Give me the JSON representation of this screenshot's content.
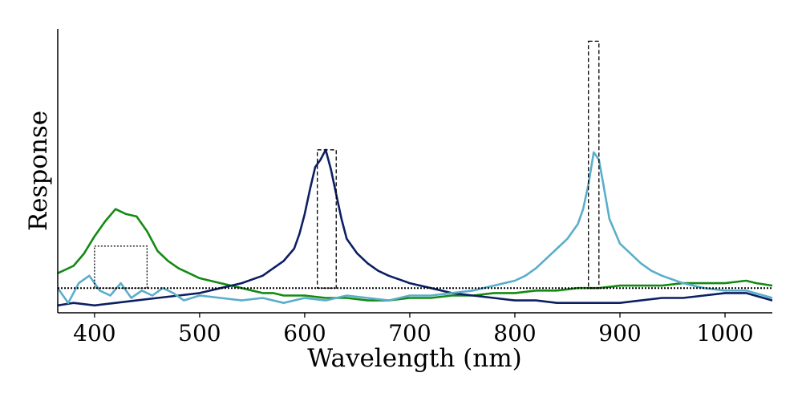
{
  "chart_data": {
    "type": "line",
    "title": "",
    "xlabel": "Wavelength (nm)",
    "ylabel": "Response",
    "xlim": [
      365,
      1045
    ],
    "ylim": [
      -0.1,
      1.05
    ],
    "xticks": [
      400,
      500,
      600,
      700,
      800,
      900,
      1000
    ],
    "xtick_labels": [
      "400",
      "500",
      "600",
      "700",
      "800",
      "900",
      "1000"
    ],
    "grid": false,
    "legend": "none",
    "colors": {
      "green": "#138a13",
      "navy": "#0c1f63",
      "lightblue": "#5aaecb",
      "box": "#000000"
    },
    "series": [
      {
        "name": "green",
        "color": "#138a13",
        "x": [
          365,
          380,
          390,
          400,
          410,
          420,
          425,
          430,
          440,
          450,
          460,
          470,
          480,
          490,
          500,
          510,
          520,
          530,
          540,
          550,
          560,
          570,
          580,
          600,
          620,
          640,
          660,
          680,
          700,
          720,
          740,
          760,
          780,
          800,
          820,
          840,
          860,
          880,
          900,
          920,
          940,
          960,
          980,
          1000,
          1020,
          1030,
          1045
        ],
        "y": [
          0.06,
          0.09,
          0.14,
          0.21,
          0.27,
          0.32,
          0.31,
          0.3,
          0.29,
          0.23,
          0.15,
          0.11,
          0.08,
          0.06,
          0.04,
          0.03,
          0.02,
          0.01,
          0.0,
          -0.01,
          -0.02,
          -0.02,
          -0.03,
          -0.03,
          -0.04,
          -0.04,
          -0.05,
          -0.05,
          -0.04,
          -0.04,
          -0.03,
          -0.03,
          -0.02,
          -0.02,
          -0.01,
          -0.01,
          0.0,
          0.0,
          0.01,
          0.01,
          0.01,
          0.02,
          0.02,
          0.02,
          0.03,
          0.02,
          0.01
        ]
      },
      {
        "name": "navy",
        "color": "#0c1f63",
        "x": [
          365,
          380,
          400,
          420,
          440,
          460,
          480,
          500,
          520,
          540,
          560,
          570,
          580,
          590,
          595,
          600,
          605,
          610,
          615,
          620,
          625,
          630,
          635,
          640,
          650,
          660,
          670,
          680,
          700,
          720,
          740,
          760,
          780,
          800,
          820,
          840,
          860,
          880,
          900,
          920,
          940,
          960,
          980,
          1000,
          1020,
          1045
        ],
        "y": [
          -0.07,
          -0.06,
          -0.07,
          -0.06,
          -0.05,
          -0.04,
          -0.03,
          -0.02,
          0.0,
          0.02,
          0.05,
          0.08,
          0.11,
          0.16,
          0.22,
          0.3,
          0.4,
          0.49,
          0.52,
          0.56,
          0.48,
          0.38,
          0.28,
          0.2,
          0.14,
          0.1,
          0.07,
          0.05,
          0.02,
          0.0,
          -0.02,
          -0.03,
          -0.04,
          -0.05,
          -0.05,
          -0.06,
          -0.06,
          -0.06,
          -0.06,
          -0.05,
          -0.04,
          -0.04,
          -0.03,
          -0.02,
          -0.02,
          -0.05
        ]
      },
      {
        "name": "light blue",
        "color": "#5aaecb",
        "x": [
          365,
          375,
          385,
          395,
          405,
          415,
          425,
          435,
          445,
          455,
          465,
          475,
          485,
          500,
          520,
          540,
          560,
          580,
          600,
          620,
          640,
          660,
          680,
          700,
          720,
          740,
          760,
          780,
          800,
          810,
          820,
          830,
          840,
          850,
          860,
          865,
          870,
          875,
          880,
          885,
          890,
          900,
          910,
          920,
          930,
          940,
          960,
          980,
          1000,
          1020,
          1045
        ],
        "y": [
          0.0,
          -0.06,
          0.02,
          0.05,
          -0.01,
          -0.03,
          0.02,
          -0.04,
          -0.01,
          -0.03,
          0.0,
          -0.02,
          -0.05,
          -0.03,
          -0.04,
          -0.05,
          -0.04,
          -0.06,
          -0.04,
          -0.05,
          -0.03,
          -0.04,
          -0.05,
          -0.03,
          -0.03,
          -0.02,
          -0.01,
          0.01,
          0.03,
          0.05,
          0.08,
          0.12,
          0.16,
          0.2,
          0.26,
          0.32,
          0.42,
          0.55,
          0.52,
          0.4,
          0.28,
          0.18,
          0.14,
          0.1,
          0.07,
          0.05,
          0.02,
          0.0,
          -0.01,
          -0.01,
          -0.04
        ]
      }
    ],
    "horizontal_line": {
      "y": 0.0,
      "style": "dotted",
      "color": "#000000"
    },
    "boxes": [
      {
        "x0": 400,
        "x1": 450,
        "y0": 0.0,
        "y1": 0.17,
        "style": "dotted"
      },
      {
        "x0": 612,
        "x1": 630,
        "y0": 0.0,
        "y1": 0.56,
        "style": "dashed"
      },
      {
        "x0": 870,
        "x1": 880,
        "y0": 0.0,
        "y1": 1.0,
        "style": "dashed"
      }
    ]
  }
}
